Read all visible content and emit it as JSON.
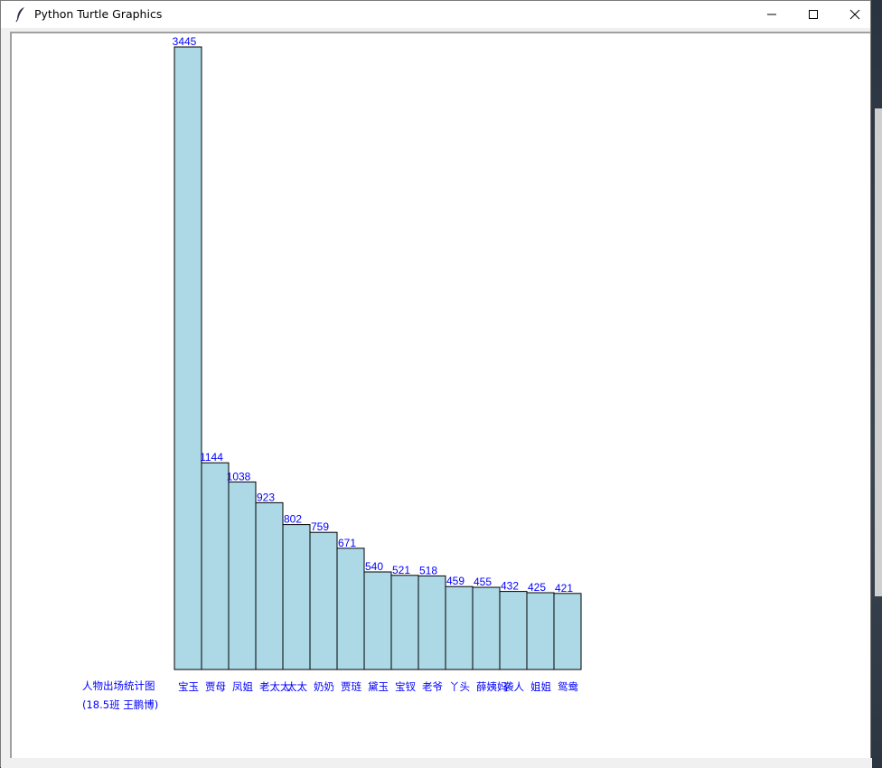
{
  "window": {
    "title": "Python Turtle Graphics"
  },
  "icons": {
    "app": "feather-icon",
    "minimize": "minimize-icon",
    "maximize": "maximize-icon",
    "close": "close-icon"
  },
  "colors": {
    "bar_fill": "#add8e6",
    "bar_stroke": "#000000",
    "label_color": "#0000ff"
  },
  "chart_data": {
    "type": "bar",
    "categories": [
      "宝玉",
      "贾母",
      "凤姐",
      "老太太",
      "太太",
      "奶奶",
      "贾琏",
      "黛玉",
      "宝钗",
      "老爷",
      "丫头",
      "薛姨妈",
      "袭人",
      "姐姐",
      "鸳鸯"
    ],
    "values": [
      3445,
      1144,
      1038,
      923,
      802,
      759,
      671,
      540,
      521,
      518,
      459,
      455,
      432,
      425,
      421
    ],
    "caption_line1": "人物出场统计图",
    "caption_line2": "(18.5班 王鹏博)",
    "ylim": [
      0,
      3445
    ],
    "grid": false,
    "legend": false
  }
}
